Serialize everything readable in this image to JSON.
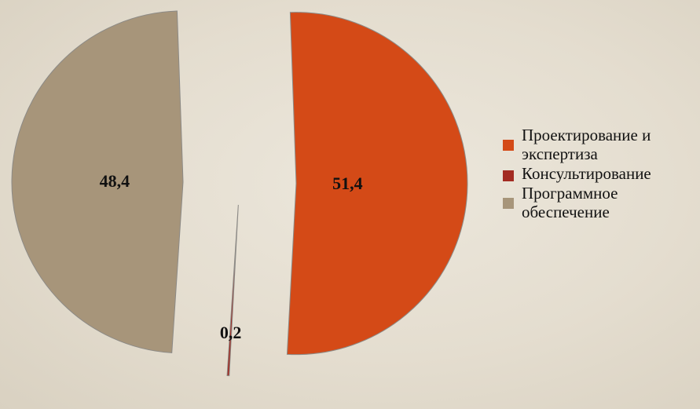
{
  "chart_data": {
    "type": "pie",
    "exploded": true,
    "categories": [
      "Проектирование и экспертиза",
      "Консультирование",
      "Программное обеспечение"
    ],
    "values": [
      51.4,
      0.2,
      48.4
    ],
    "value_labels": [
      "51,4",
      "0,2",
      "48,4"
    ],
    "colors": [
      "#d44a17",
      "#a32b22",
      "#a7957a"
    ],
    "legend_placement": "right"
  },
  "legend": {
    "items": [
      {
        "lines": [
          "Проектирование и",
          "экспертиза"
        ],
        "color": "#d44a17"
      },
      {
        "lines": [
          "Консультирование"
        ],
        "color": "#a32b22"
      },
      {
        "lines": [
          "Программное",
          "обеспечение"
        ],
        "color": "#a7957a"
      }
    ]
  }
}
